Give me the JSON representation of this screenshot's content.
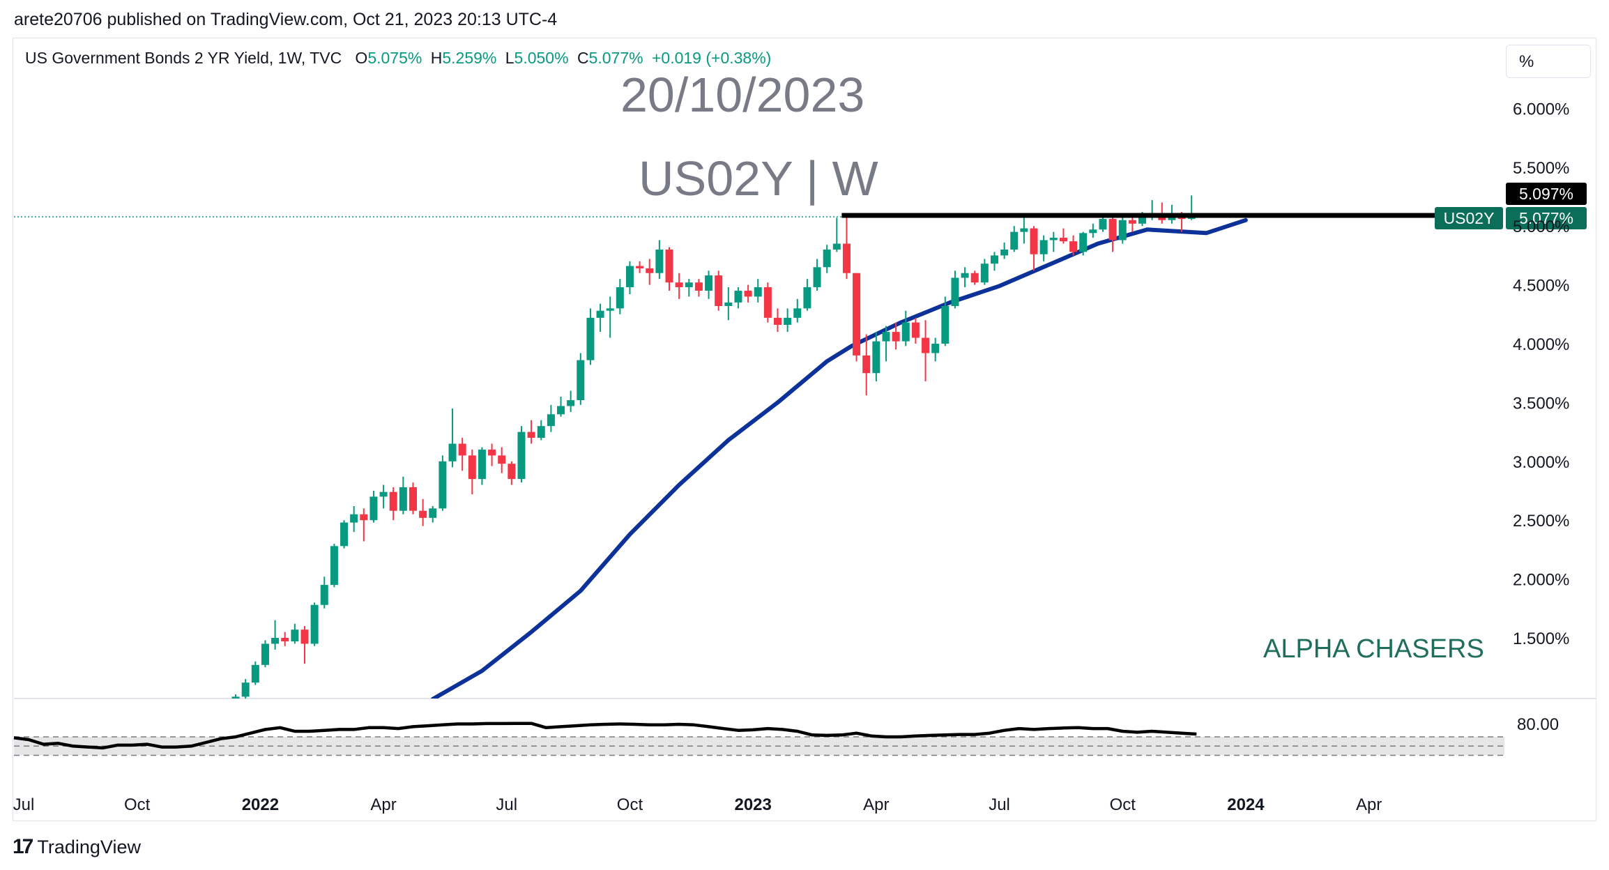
{
  "published_line": "arete20706 published on TradingView.com, Oct 21, 2023 20:13 UTC-4",
  "header": {
    "symbol": "US Government Bonds 2 YR Yield, 1W, TVC",
    "open_label": "O",
    "open": "5.075%",
    "high_label": "H",
    "high": "5.259%",
    "low_label": "L",
    "low": "5.050%",
    "close_label": "C",
    "close": "5.077%",
    "change": "+0.019 (+0.38%)"
  },
  "scale_button": "%",
  "watermark": {
    "date": "20/10/2023",
    "ticker": "US02Y | W",
    "brand": "ALPHA CHASERS"
  },
  "footer": {
    "logo_mark": "17",
    "logo_text": "TradingView"
  },
  "colors": {
    "up": "#089981",
    "down": "#f23645",
    "ma": "#0c3299",
    "resistance": "#000000",
    "rsi": "#000000"
  },
  "chart_data": {
    "type": "candlestick",
    "title": "US Government Bonds 2 YR Yield, 1W, TVC",
    "x_ticks": [
      "Jul",
      "Oct",
      "2022",
      "Apr",
      "Jul",
      "Oct",
      "2023",
      "Apr",
      "Jul",
      "Oct",
      "2024",
      "Apr"
    ],
    "y_ticks": [
      "6.000%",
      "5.500%",
      "5.000%",
      "4.500%",
      "4.000%",
      "3.500%",
      "3.000%",
      "2.500%",
      "2.000%",
      "1.500%"
    ],
    "ylim": [
      1.0,
      6.35
    ],
    "price_labels": {
      "high_marker": "5.097%",
      "last_symbol": "US02Y",
      "last_value": "5.077%"
    },
    "resistance_level": 5.09,
    "moving_average": [
      [
        2022.35,
        0.98
      ],
      [
        2022.45,
        1.22
      ],
      [
        2022.55,
        1.55
      ],
      [
        2022.65,
        1.9
      ],
      [
        2022.75,
        2.38
      ],
      [
        2022.85,
        2.8
      ],
      [
        2022.95,
        3.18
      ],
      [
        2023.05,
        3.5
      ],
      [
        2023.15,
        3.85
      ],
      [
        2023.2,
        3.98
      ],
      [
        2023.3,
        4.18
      ],
      [
        2023.4,
        4.35
      ],
      [
        2023.5,
        4.49
      ],
      [
        2023.6,
        4.67
      ],
      [
        2023.7,
        4.85
      ],
      [
        2023.8,
        4.97
      ],
      [
        2023.92,
        4.94
      ],
      [
        2024.0,
        5.05
      ]
    ],
    "candles": [
      [
        2021.93,
        0.88,
        0.97,
        0.86,
        0.95
      ],
      [
        2021.95,
        0.95,
        1.02,
        0.92,
        1.0
      ],
      [
        2021.97,
        1.0,
        1.15,
        0.98,
        1.12
      ],
      [
        2021.99,
        1.12,
        1.3,
        1.1,
        1.27
      ],
      [
        2022.01,
        1.27,
        1.48,
        1.25,
        1.45
      ],
      [
        2022.03,
        1.45,
        1.65,
        1.4,
        1.5
      ],
      [
        2022.05,
        1.5,
        1.55,
        1.43,
        1.47
      ],
      [
        2022.07,
        1.47,
        1.62,
        1.45,
        1.57
      ],
      [
        2022.09,
        1.57,
        1.6,
        1.28,
        1.45
      ],
      [
        2022.11,
        1.45,
        1.8,
        1.43,
        1.78
      ],
      [
        2022.13,
        1.78,
        2.02,
        1.75,
        1.95
      ],
      [
        2022.15,
        1.95,
        2.3,
        1.93,
        2.28
      ],
      [
        2022.17,
        2.28,
        2.5,
        2.26,
        2.48
      ],
      [
        2022.19,
        2.48,
        2.62,
        2.4,
        2.55
      ],
      [
        2022.21,
        2.55,
        2.6,
        2.32,
        2.5
      ],
      [
        2022.23,
        2.5,
        2.75,
        2.48,
        2.7
      ],
      [
        2022.25,
        2.7,
        2.8,
        2.6,
        2.74
      ],
      [
        2022.27,
        2.74,
        2.78,
        2.5,
        2.58
      ],
      [
        2022.29,
        2.58,
        2.87,
        2.55,
        2.78
      ],
      [
        2022.31,
        2.78,
        2.82,
        2.55,
        2.58
      ],
      [
        2022.33,
        2.58,
        2.68,
        2.45,
        2.52
      ],
      [
        2022.35,
        2.52,
        2.62,
        2.48,
        2.6
      ],
      [
        2022.37,
        2.6,
        3.05,
        2.58,
        3.0
      ],
      [
        2022.39,
        3.0,
        3.45,
        2.95,
        3.15
      ],
      [
        2022.41,
        3.15,
        3.2,
        2.92,
        3.05
      ],
      [
        2022.43,
        3.05,
        3.1,
        2.72,
        2.85
      ],
      [
        2022.45,
        2.85,
        3.12,
        2.8,
        3.1
      ],
      [
        2022.47,
        3.1,
        3.15,
        2.96,
        3.05
      ],
      [
        2022.49,
        3.05,
        3.12,
        2.9,
        2.98
      ],
      [
        2022.51,
        2.98,
        3.0,
        2.8,
        2.85
      ],
      [
        2022.53,
        2.85,
        3.3,
        2.82,
        3.25
      ],
      [
        2022.55,
        3.25,
        3.35,
        3.15,
        3.2
      ],
      [
        2022.57,
        3.2,
        3.35,
        3.18,
        3.3
      ],
      [
        2022.59,
        3.3,
        3.48,
        3.25,
        3.4
      ],
      [
        2022.61,
        3.4,
        3.55,
        3.38,
        3.47
      ],
      [
        2022.63,
        3.47,
        3.6,
        3.42,
        3.52
      ],
      [
        2022.65,
        3.52,
        3.92,
        3.48,
        3.86
      ],
      [
        2022.67,
        3.86,
        4.3,
        3.82,
        4.22
      ],
      [
        2022.69,
        4.22,
        4.34,
        4.1,
        4.28
      ],
      [
        2022.71,
        4.28,
        4.4,
        4.05,
        4.3
      ],
      [
        2022.73,
        4.3,
        4.55,
        4.25,
        4.48
      ],
      [
        2022.75,
        4.48,
        4.7,
        4.42,
        4.66
      ],
      [
        2022.77,
        4.66,
        4.7,
        4.6,
        4.64
      ],
      [
        2022.79,
        4.64,
        4.72,
        4.5,
        4.6
      ],
      [
        2022.81,
        4.6,
        4.88,
        4.55,
        4.8
      ],
      [
        2022.83,
        4.8,
        4.82,
        4.45,
        4.52
      ],
      [
        2022.85,
        4.52,
        4.6,
        4.38,
        4.48
      ],
      [
        2022.87,
        4.48,
        4.55,
        4.4,
        4.52
      ],
      [
        2022.89,
        4.52,
        4.55,
        4.4,
        4.45
      ],
      [
        2022.91,
        4.45,
        4.62,
        4.38,
        4.58
      ],
      [
        2022.93,
        4.58,
        4.62,
        4.28,
        4.32
      ],
      [
        2022.95,
        4.32,
        4.48,
        4.2,
        4.35
      ],
      [
        2022.97,
        4.35,
        4.48,
        4.3,
        4.45
      ],
      [
        2022.99,
        4.45,
        4.5,
        4.35,
        4.4
      ],
      [
        2023.01,
        4.4,
        4.55,
        4.35,
        4.48
      ],
      [
        2023.03,
        4.48,
        4.52,
        4.18,
        4.22
      ],
      [
        2023.05,
        4.22,
        4.3,
        4.1,
        4.16
      ],
      [
        2023.07,
        4.16,
        4.3,
        4.1,
        4.22
      ],
      [
        2023.09,
        4.22,
        4.38,
        4.18,
        4.3
      ],
      [
        2023.11,
        4.3,
        4.55,
        4.28,
        4.48
      ],
      [
        2023.13,
        4.48,
        4.72,
        4.45,
        4.65
      ],
      [
        2023.15,
        4.65,
        4.84,
        4.6,
        4.8
      ],
      [
        2023.17,
        4.8,
        5.07,
        4.78,
        4.85
      ],
      [
        2023.19,
        4.85,
        5.08,
        4.55,
        4.6
      ],
      [
        2023.21,
        4.6,
        4.6,
        3.85,
        3.9
      ],
      [
        2023.23,
        3.9,
        4.08,
        3.56,
        3.75
      ],
      [
        2023.25,
        3.75,
        4.1,
        3.68,
        4.02
      ],
      [
        2023.27,
        4.02,
        4.15,
        3.85,
        4.1
      ],
      [
        2023.29,
        4.1,
        4.18,
        3.95,
        4.02
      ],
      [
        2023.31,
        4.02,
        4.28,
        3.98,
        4.18
      ],
      [
        2023.33,
        4.18,
        4.22,
        4.0,
        4.05
      ],
      [
        2023.35,
        4.05,
        4.2,
        3.68,
        3.92
      ],
      [
        2023.37,
        3.92,
        4.05,
        3.85,
        4.0
      ],
      [
        2023.39,
        4.0,
        4.4,
        3.98,
        4.32
      ],
      [
        2023.41,
        4.32,
        4.62,
        4.3,
        4.56
      ],
      [
        2023.43,
        4.56,
        4.65,
        4.48,
        4.6
      ],
      [
        2023.45,
        4.6,
        4.62,
        4.5,
        4.52
      ],
      [
        2023.47,
        4.52,
        4.72,
        4.5,
        4.68
      ],
      [
        2023.49,
        4.68,
        4.78,
        4.62,
        4.75
      ],
      [
        2023.51,
        4.75,
        4.86,
        4.72,
        4.8
      ],
      [
        2023.53,
        4.8,
        5.0,
        4.78,
        4.95
      ],
      [
        2023.55,
        4.95,
        5.08,
        4.85,
        4.98
      ],
      [
        2023.57,
        4.98,
        5.0,
        4.62,
        4.76
      ],
      [
        2023.59,
        4.76,
        4.92,
        4.7,
        4.88
      ],
      [
        2023.61,
        4.88,
        4.95,
        4.78,
        4.9
      ],
      [
        2023.63,
        4.9,
        4.98,
        4.85,
        4.87
      ],
      [
        2023.65,
        4.87,
        4.92,
        4.75,
        4.78
      ],
      [
        2023.67,
        4.78,
        4.95,
        4.75,
        4.94
      ],
      [
        2023.69,
        4.94,
        5.02,
        4.9,
        4.97
      ],
      [
        2023.71,
        4.97,
        5.08,
        4.95,
        5.06
      ],
      [
        2023.73,
        5.06,
        5.09,
        4.78,
        4.88
      ],
      [
        2023.75,
        4.88,
        5.08,
        4.85,
        5.05
      ],
      [
        2023.77,
        5.05,
        5.08,
        4.95,
        5.02
      ],
      [
        2023.79,
        5.02,
        5.12,
        5.0,
        5.08
      ],
      [
        2023.81,
        5.08,
        5.22,
        5.05,
        5.1
      ],
      [
        2023.83,
        5.1,
        5.2,
        5.02,
        5.05
      ],
      [
        2023.85,
        5.05,
        5.18,
        5.02,
        5.1
      ],
      [
        2023.87,
        5.1,
        5.12,
        4.95,
        5.06
      ],
      [
        2023.89,
        5.06,
        5.26,
        5.05,
        5.08
      ]
    ],
    "rsi": {
      "label": "80.00",
      "band": [
        70,
        80
      ],
      "mid": 75,
      "ylim": [
        60,
        100
      ],
      "values": [
        [
          2021.5,
          79.5
        ],
        [
          2021.53,
          78.5
        ],
        [
          2021.56,
          76
        ],
        [
          2021.59,
          76.5
        ],
        [
          2021.62,
          75
        ],
        [
          2021.65,
          74.5
        ],
        [
          2021.68,
          74
        ],
        [
          2021.71,
          75.5
        ],
        [
          2021.74,
          75.5
        ],
        [
          2021.77,
          76
        ],
        [
          2021.8,
          74.5
        ],
        [
          2021.83,
          74.5
        ],
        [
          2021.86,
          75
        ],
        [
          2021.89,
          77
        ],
        [
          2021.92,
          79
        ],
        [
          2021.95,
          80
        ],
        [
          2021.98,
          82
        ],
        [
          2022.01,
          84
        ],
        [
          2022.04,
          85
        ],
        [
          2022.07,
          83
        ],
        [
          2022.1,
          83
        ],
        [
          2022.13,
          83.5
        ],
        [
          2022.16,
          84
        ],
        [
          2022.19,
          84
        ],
        [
          2022.22,
          85
        ],
        [
          2022.25,
          85
        ],
        [
          2022.28,
          84.5
        ],
        [
          2022.31,
          85.5
        ],
        [
          2022.34,
          86
        ],
        [
          2022.37,
          86.5
        ],
        [
          2022.4,
          87
        ],
        [
          2022.43,
          87
        ],
        [
          2022.46,
          87.2
        ],
        [
          2022.49,
          87.2
        ],
        [
          2022.52,
          87.3
        ],
        [
          2022.55,
          87.3
        ],
        [
          2022.58,
          85
        ],
        [
          2022.61,
          85.5
        ],
        [
          2022.64,
          86
        ],
        [
          2022.67,
          86.5
        ],
        [
          2022.7,
          86.8
        ],
        [
          2022.73,
          87
        ],
        [
          2022.76,
          86.8
        ],
        [
          2022.79,
          86.5
        ],
        [
          2022.82,
          86.5
        ],
        [
          2022.85,
          86.8
        ],
        [
          2022.88,
          86.5
        ],
        [
          2022.91,
          85.5
        ],
        [
          2022.94,
          84.5
        ],
        [
          2022.97,
          83.5
        ],
        [
          2023.0,
          83.8
        ],
        [
          2023.03,
          84.5
        ],
        [
          2023.06,
          84
        ],
        [
          2023.09,
          83
        ],
        [
          2023.12,
          81
        ],
        [
          2023.15,
          80.8
        ],
        [
          2023.18,
          81
        ],
        [
          2023.21,
          82
        ],
        [
          2023.24,
          80.5
        ],
        [
          2023.27,
          80
        ],
        [
          2023.3,
          80
        ],
        [
          2023.33,
          80.5
        ],
        [
          2023.36,
          80.8
        ],
        [
          2023.39,
          81
        ],
        [
          2023.42,
          81.3
        ],
        [
          2023.45,
          81.3
        ],
        [
          2023.48,
          82
        ],
        [
          2023.51,
          83.5
        ],
        [
          2023.54,
          84.5
        ],
        [
          2023.57,
          84
        ],
        [
          2023.6,
          84.5
        ],
        [
          2023.63,
          84.8
        ],
        [
          2023.66,
          85
        ],
        [
          2023.69,
          84.5
        ],
        [
          2023.72,
          84.5
        ],
        [
          2023.75,
          83
        ],
        [
          2023.78,
          82.5
        ],
        [
          2023.81,
          83
        ],
        [
          2023.84,
          82.5
        ],
        [
          2023.87,
          82
        ],
        [
          2023.9,
          81.5
        ]
      ]
    }
  }
}
